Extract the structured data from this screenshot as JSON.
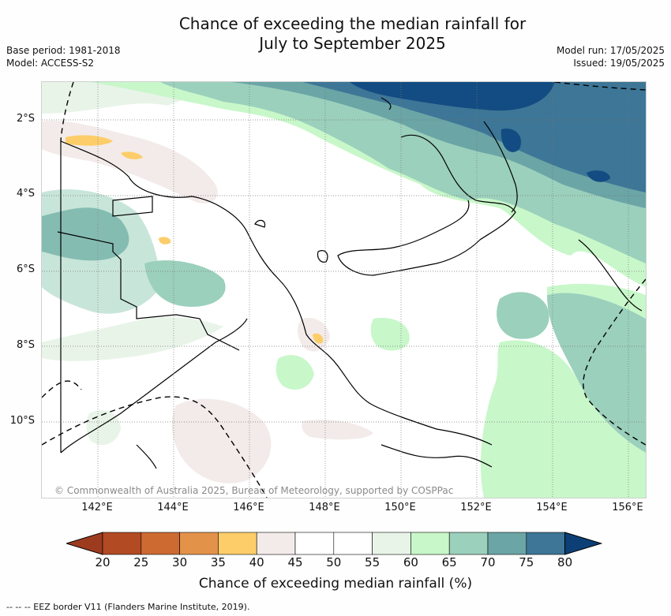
{
  "header": {
    "title_line1": "Chance of exceeding the median rainfall for",
    "title_line2": "July to September 2025",
    "base_period": "Base period: 1981-2018",
    "model": "Model: ACCESS-S2",
    "model_run": "Model run: 17/05/2025",
    "issued": "Issued: 19/05/2025"
  },
  "map": {
    "copyright": "© Commonwealth of Australia 2025, Bureau of Meteorology, supported by COSPPac",
    "lat_labels": [
      "2°S",
      "4°S",
      "6°S",
      "8°S",
      "10°S"
    ],
    "lon_labels": [
      "142°E",
      "144°E",
      "146°E",
      "148°E",
      "150°E",
      "152°E",
      "154°E",
      "156°E"
    ],
    "lon_range": [
      140.8,
      156.7
    ],
    "lat_range": [
      -11.8,
      -0.8
    ]
  },
  "colorbar": {
    "ticks": [
      "20",
      "25",
      "30",
      "35",
      "40",
      "45",
      "50",
      "55",
      "60",
      "65",
      "70",
      "75",
      "80"
    ],
    "colors": [
      "#b24a24",
      "#cd6a31",
      "#e3924a",
      "#fdcd6a",
      "#f2ebe9",
      "#ffffff",
      "#ffffff",
      "#e9f4e9",
      "#c8f7c9",
      "#9bd0bc",
      "#6ba5a6",
      "#3d7696",
      "#124c82"
    ],
    "under_color": "#9d3b1f",
    "over_color": "#0d3f77",
    "label": "Chance of exceeding median rainfall (%)"
  },
  "footnote": "--  --  -- EEZ border V11 (Flanders Marine Institute, 2019)."
}
